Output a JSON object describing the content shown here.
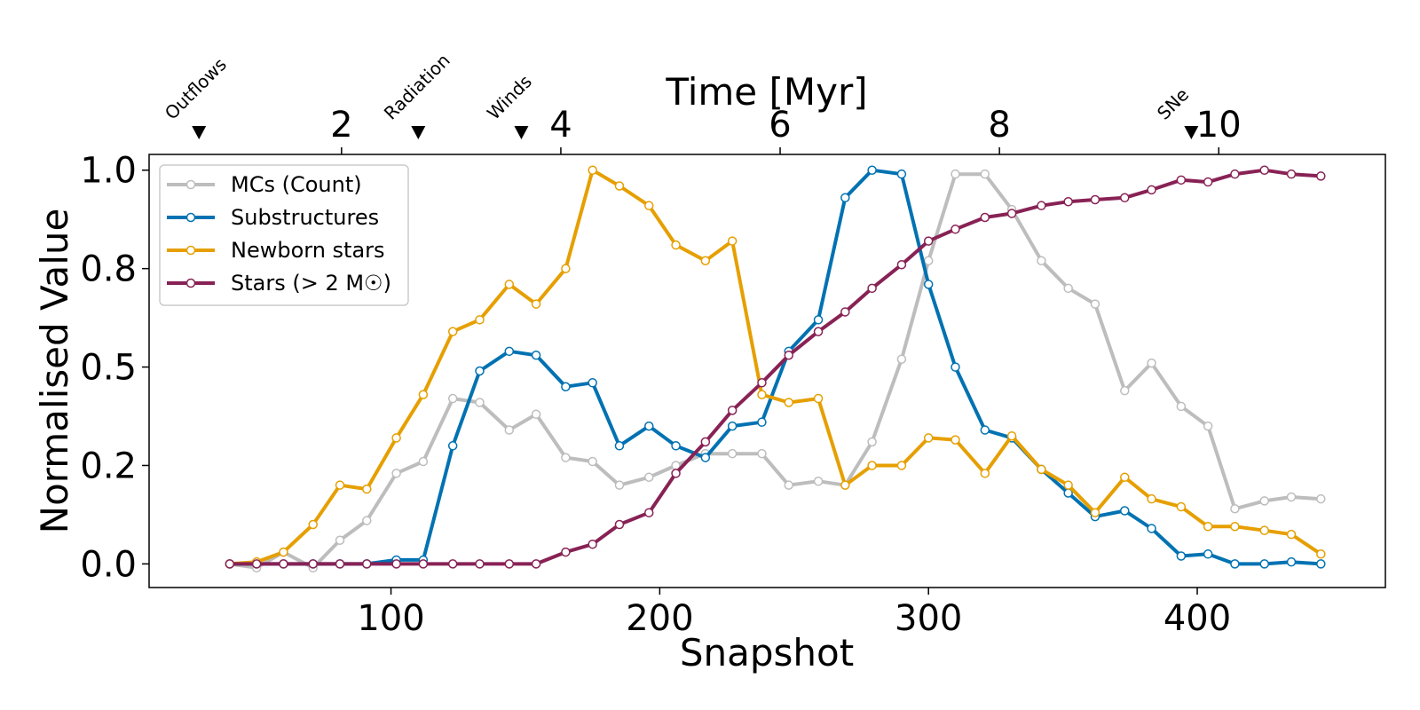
{
  "chart_data": {
    "type": "line",
    "xlabel": "Snapshot",
    "ylabel": "Normalised Value",
    "top_xlabel": "Time [Myr]",
    "xlim": [
      10,
      470
    ],
    "ylim": [
      -0.06,
      1.04
    ],
    "x_ticks": [
      100,
      200,
      300,
      400
    ],
    "x_tick_labels": [
      "100",
      "200",
      "300",
      "400"
    ],
    "y_ticks": [
      0.0,
      0.25,
      0.5,
      0.75,
      1.0
    ],
    "y_tick_labels": [
      "0.0",
      "0.2",
      "0.5",
      "0.8",
      "1.0"
    ],
    "top_ticks": [
      2,
      4,
      6,
      8,
      10
    ],
    "top_tick_labels": [
      "2",
      "4",
      "6",
      "8",
      "10"
    ],
    "snapshots_per_myr": 40.8,
    "events": [
      {
        "label": "Outflows",
        "time": 0.7
      },
      {
        "label": "Radiation",
        "time": 2.7
      },
      {
        "label": "Winds",
        "time": 3.64
      },
      {
        "label": "SNe",
        "time": 9.75
      }
    ],
    "legend_position": "upper-left",
    "x": [
      40,
      50,
      60,
      71,
      81,
      91,
      102,
      112,
      123,
      133,
      144,
      154,
      165,
      175,
      185,
      196,
      206,
      217,
      227,
      238,
      248,
      259,
      269,
      279,
      290,
      300,
      310,
      321,
      331,
      342,
      352,
      362,
      373,
      383,
      394,
      404,
      414,
      425,
      435,
      446
    ],
    "series": [
      {
        "name": "MCs (Count)",
        "color": "#bdbdbd",
        "values": [
          0.0,
          -0.01,
          0.03,
          -0.01,
          0.06,
          0.11,
          0.23,
          0.26,
          0.42,
          0.41,
          0.34,
          0.38,
          0.27,
          0.26,
          0.2,
          0.22,
          0.25,
          0.28,
          0.28,
          0.28,
          0.2,
          0.21,
          0.2,
          0.31,
          0.52,
          0.77,
          0.99,
          0.99,
          0.9,
          0.77,
          0.7,
          0.66,
          0.44,
          0.51,
          0.4,
          0.35,
          0.14,
          0.16,
          0.17,
          0.165
        ]
      },
      {
        "name": "Substructures",
        "color": "#0072b2",
        "values": [
          0.0,
          0.0,
          0.0,
          0.0,
          0.0,
          0.0,
          0.01,
          0.01,
          0.3,
          0.49,
          0.54,
          0.53,
          0.45,
          0.46,
          0.3,
          0.35,
          0.3,
          0.27,
          0.35,
          0.36,
          0.54,
          0.62,
          0.93,
          1.0,
          0.99,
          0.71,
          0.5,
          0.34,
          0.32,
          0.24,
          0.18,
          0.12,
          0.135,
          0.09,
          0.02,
          0.025,
          0.0,
          0.0,
          0.005,
          0.0
        ]
      },
      {
        "name": "Newborn stars",
        "color": "#e69f00",
        "values": [
          0.0,
          0.005,
          0.03,
          0.1,
          0.2,
          0.19,
          0.32,
          0.43,
          0.59,
          0.62,
          0.71,
          0.66,
          0.75,
          1.0,
          0.96,
          0.91,
          0.81,
          0.77,
          0.82,
          0.43,
          0.41,
          0.42,
          0.2,
          0.25,
          0.25,
          0.32,
          0.315,
          0.23,
          0.325,
          0.24,
          0.2,
          0.13,
          0.22,
          0.165,
          0.145,
          0.095,
          0.095,
          0.085,
          0.075,
          0.025
        ]
      },
      {
        "name": "Stars (> 2 M☉)",
        "color": "#882255",
        "values": [
          0.0,
          0.0,
          0.0,
          0.0,
          0.0,
          0.0,
          0.0,
          0.0,
          0.0,
          0.0,
          0.0,
          0.0,
          0.03,
          0.05,
          0.1,
          0.13,
          0.23,
          0.31,
          0.39,
          0.46,
          0.53,
          0.59,
          0.64,
          0.7,
          0.76,
          0.82,
          0.85,
          0.88,
          0.89,
          0.91,
          0.92,
          0.925,
          0.93,
          0.95,
          0.975,
          0.97,
          0.99,
          1.0,
          0.99,
          0.985
        ]
      }
    ]
  }
}
